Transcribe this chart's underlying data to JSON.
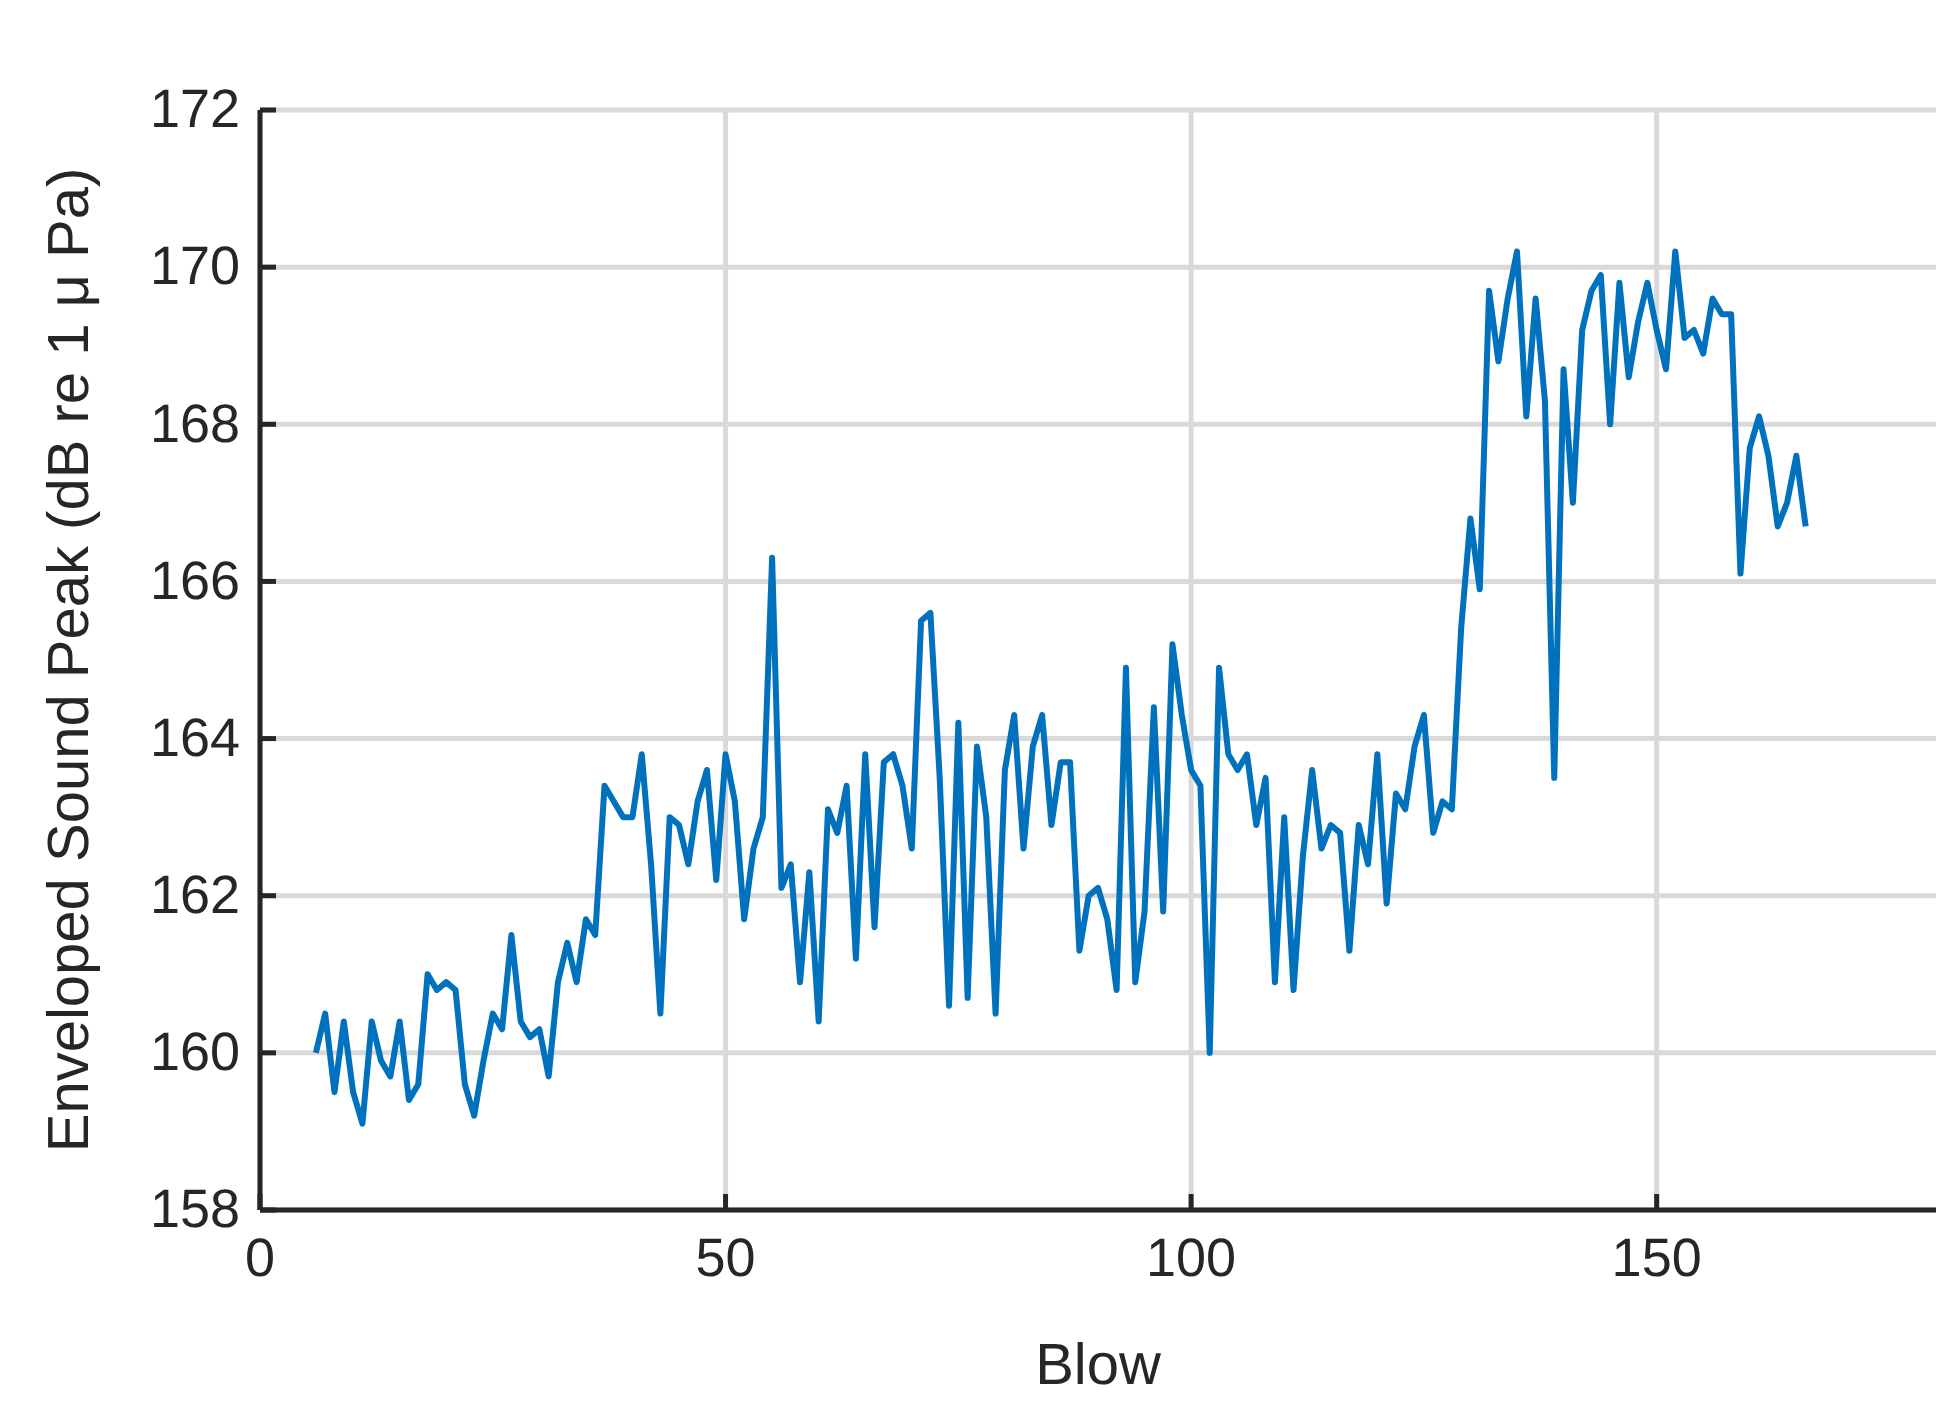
{
  "chart_data": {
    "type": "line",
    "xlabel": "Blow",
    "ylabel": "Enveloped Sound Peak (dB re 1 μ Pa)",
    "x": [
      6,
      7,
      8,
      9,
      10,
      11,
      12,
      13,
      14,
      15,
      16,
      17,
      18,
      19,
      20,
      21,
      22,
      23,
      24,
      25,
      26,
      27,
      28,
      29,
      30,
      31,
      32,
      33,
      34,
      35,
      36,
      37,
      38,
      39,
      40,
      41,
      42,
      43,
      44,
      45,
      46,
      47,
      48,
      49,
      50,
      51,
      52,
      53,
      54,
      55,
      56,
      57,
      58,
      59,
      60,
      61,
      62,
      63,
      64,
      65,
      66,
      67,
      68,
      69,
      70,
      71,
      72,
      73,
      74,
      75,
      76,
      77,
      78,
      79,
      80,
      81,
      82,
      83,
      84,
      85,
      86,
      87,
      88,
      89,
      90,
      91,
      92,
      93,
      94,
      95,
      96,
      97,
      98,
      99,
      100,
      101,
      102,
      103,
      104,
      105,
      106,
      107,
      108,
      109,
      110,
      111,
      112,
      113,
      114,
      115,
      116,
      117,
      118,
      119,
      120,
      121,
      122,
      123,
      124,
      125,
      126,
      127,
      128,
      129,
      130,
      131,
      132,
      133,
      134,
      135,
      136,
      137,
      138,
      139,
      140,
      141,
      142,
      143,
      144,
      145,
      146,
      147,
      148,
      149,
      150,
      151,
      152,
      153,
      154,
      155,
      156,
      157,
      158,
      159,
      160,
      161,
      162,
      163,
      164,
      165,
      166
    ],
    "series": [
      {
        "color": "#0072bd",
        "values": [
          160.0,
          160.5,
          159.5,
          160.4,
          159.5,
          159.1,
          160.4,
          159.9,
          159.7,
          160.4,
          159.4,
          159.6,
          161.0,
          160.8,
          160.9,
          160.8,
          159.6,
          159.2,
          159.9,
          160.5,
          160.3,
          161.5,
          160.4,
          160.2,
          160.3,
          159.7,
          160.9,
          161.4,
          160.9,
          161.7,
          161.5,
          163.4,
          163.2,
          163.0,
          163.0,
          163.8,
          162.4,
          160.5,
          163.0,
          162.9,
          162.4,
          163.2,
          163.6,
          162.2,
          163.8,
          163.2,
          161.7,
          162.6,
          163.0,
          166.3,
          162.1,
          162.4,
          160.9,
          162.3,
          160.4,
          163.1,
          162.8,
          163.4,
          161.2,
          163.8,
          161.6,
          163.7,
          163.8,
          163.4,
          162.6,
          165.5,
          165.6,
          163.5,
          160.6,
          164.2,
          160.7,
          163.9,
          163.0,
          160.5,
          163.6,
          164.3,
          162.6,
          163.9,
          164.3,
          162.9,
          163.7,
          163.7,
          161.3,
          162.0,
          162.1,
          161.7,
          160.8,
          164.9,
          160.9,
          161.8,
          164.4,
          161.8,
          165.2,
          164.3,
          163.6,
          163.4,
          160.0,
          164.9,
          163.8,
          163.6,
          163.8,
          162.9,
          163.5,
          160.9,
          163.0,
          160.8,
          162.5,
          163.6,
          162.6,
          162.9,
          162.8,
          161.3,
          162.9,
          162.4,
          163.8,
          161.9,
          163.3,
          163.1,
          163.9,
          164.3,
          162.8,
          163.2,
          163.1,
          165.4,
          166.8,
          165.9,
          169.7,
          168.8,
          169.6,
          170.2,
          168.1,
          169.6,
          168.3,
          163.5,
          168.7,
          167.0,
          169.2,
          169.7,
          169.9,
          168.0,
          169.8,
          168.6,
          169.3,
          169.8,
          169.2,
          168.7,
          170.2,
          169.1,
          169.2,
          168.9,
          169.6,
          169.4,
          169.4,
          166.1,
          167.7,
          168.1,
          167.6,
          166.7,
          167.0,
          167.6,
          166.7
        ]
      }
    ],
    "xlim": [
      0,
      180
    ],
    "xticks": [
      0,
      50,
      100,
      150
    ],
    "ylim": [
      158,
      172
    ],
    "yticks": [
      158,
      160,
      162,
      164,
      166,
      168,
      170,
      172
    ],
    "grid": true,
    "marker": "none",
    "line_style": "solid"
  }
}
